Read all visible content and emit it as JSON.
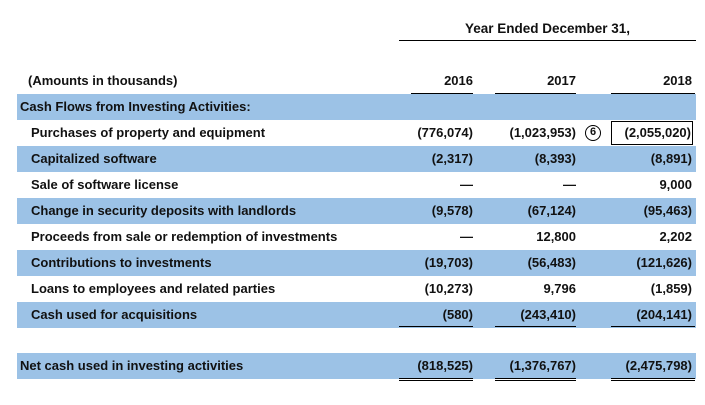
{
  "period_title": "Year Ended December 31,",
  "header": {
    "units_label": "(Amounts in thousands)",
    "years": [
      "2016",
      "2017",
      "2018"
    ]
  },
  "section_title": "Cash Flows from Investing Activities:",
  "rows": [
    {
      "label": "Purchases of property and equipment",
      "values": [
        "(776,074)",
        "(1,023,953)",
        "(2,055,020)"
      ],
      "marker": "6"
    },
    {
      "label": "Capitalized software",
      "values": [
        "(2,317)",
        "(8,393)",
        "(8,891)"
      ]
    },
    {
      "label": "Sale of software license",
      "values": [
        "—",
        "—",
        "9,000"
      ]
    },
    {
      "label": "Change in security deposits with landlords",
      "values": [
        "(9,578)",
        "(67,124)",
        "(95,463)"
      ]
    },
    {
      "label": "Proceeds from sale or redemption of investments",
      "values": [
        "—",
        "12,800",
        "2,202"
      ]
    },
    {
      "label": "Contributions to investments",
      "values": [
        "(19,703)",
        "(56,483)",
        "(121,626)"
      ]
    },
    {
      "label": "Loans to employees and related parties",
      "values": [
        "(10,273)",
        "9,796",
        "(1,859)"
      ]
    },
    {
      "label": "Cash used for acquisitions",
      "values": [
        "(580)",
        "(243,410)",
        "(204,141)"
      ]
    }
  ],
  "total": {
    "label": "Net cash used in investing activities",
    "values": [
      "(818,525)",
      "(1,376,767)",
      "(2,475,798)"
    ]
  },
  "colors": {
    "shade": "#9cc2e6"
  }
}
